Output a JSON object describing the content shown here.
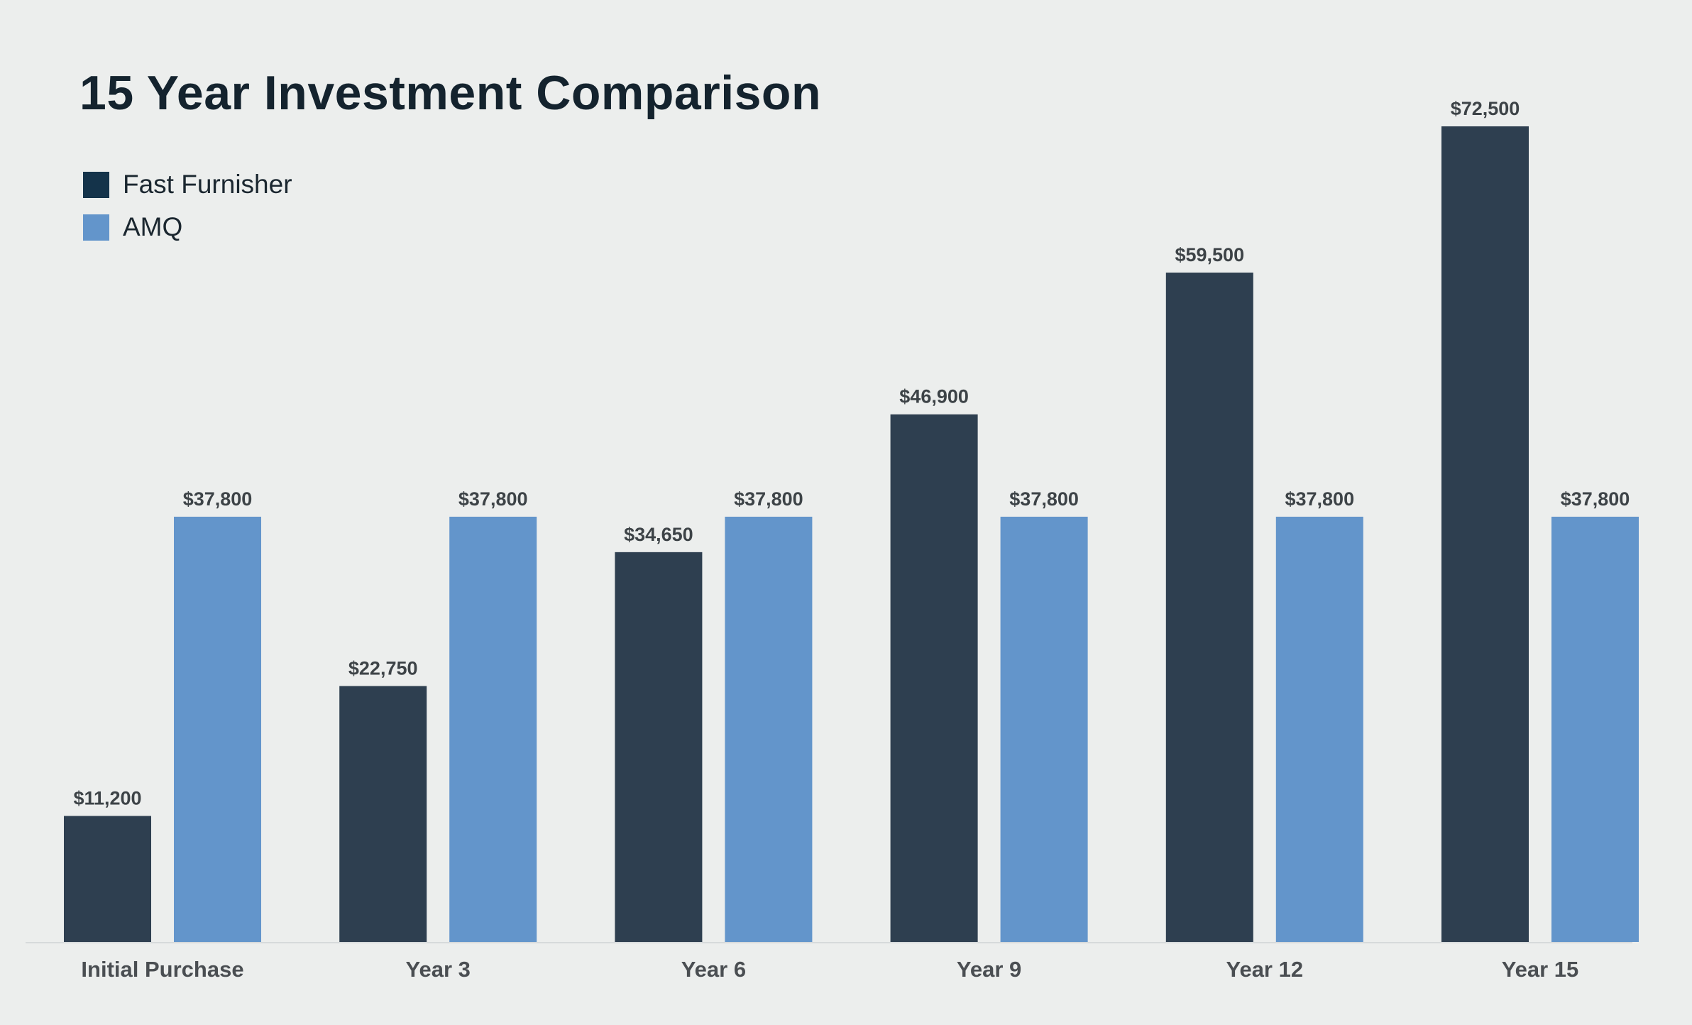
{
  "chart_data": {
    "type": "bar",
    "title": "15 Year Investment Comparison",
    "xlabel": "",
    "ylabel": "",
    "categories": [
      "Initial Purchase",
      "Year 3",
      "Year 6",
      "Year 9",
      "Year 12",
      "Year 15"
    ],
    "series": [
      {
        "name": "Fast Furnisher",
        "color": "#2e3f50",
        "swatch_color": "#14334a",
        "values": [
          11200,
          22750,
          34650,
          46900,
          59500,
          72500
        ],
        "labels": [
          "$11,200",
          "$22,750",
          "$34,650",
          "$46,900",
          "$59,500",
          "$72,500"
        ]
      },
      {
        "name": "AMQ",
        "color": "#6395cb",
        "swatch_color": "#6395cb",
        "values": [
          37800,
          37800,
          37800,
          37800,
          37800,
          37800
        ],
        "labels": [
          "$37,800",
          "$37,800",
          "$37,800",
          "$37,800",
          "$37,800",
          "$37,800"
        ]
      }
    ],
    "ylim": [
      0,
      72500
    ],
    "grid": false,
    "legend": "top-left"
  }
}
